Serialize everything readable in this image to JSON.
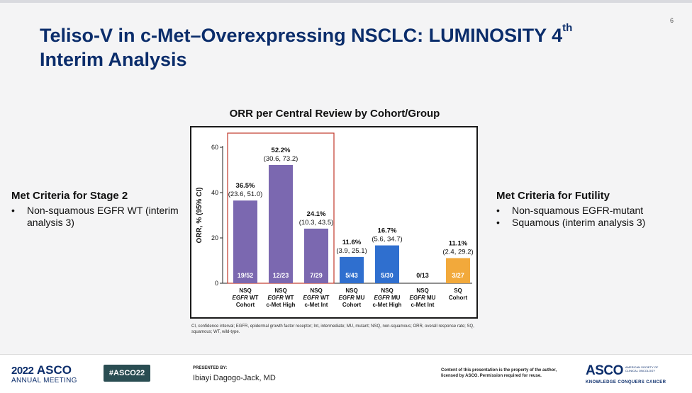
{
  "slide": {
    "page_number": "6",
    "title": "Teliso-V in c-Met–Overexpressing NSCLC: LUMINOSITY 4",
    "title_sup": "th",
    "title_line2": "Interim Analysis"
  },
  "left_panel": {
    "heading": "Met Criteria for Stage 2",
    "bullets": [
      "Non-squamous EGFR WT (interim analysis 3)"
    ]
  },
  "right_panel": {
    "heading": "Met Criteria for Futility",
    "bullets": [
      "Non-squamous EGFR-mutant",
      "Squamous (interim analysis 3)"
    ]
  },
  "chart_data": {
    "type": "bar",
    "title": "ORR per Central Review by Cohort/Group",
    "ylabel": "ORR, % (95% CI)",
    "ylim": [
      0,
      60
    ],
    "yticks": [
      0,
      20,
      40,
      60
    ],
    "categories": [
      [
        "NSQ",
        "EGFR WT",
        "Cohort"
      ],
      [
        "NSQ",
        "EGFR WT",
        "c-Met High"
      ],
      [
        "NSQ",
        "EGFR WT",
        "c-Met Int"
      ],
      [
        "NSQ",
        "EGFR MU",
        "Cohort"
      ],
      [
        "NSQ",
        "EGFR MU",
        "c-Met High"
      ],
      [
        "NSQ",
        "EGFR MU",
        "c-Met Int"
      ],
      [
        "SQ",
        "",
        "Cohort"
      ]
    ],
    "values": [
      36.5,
      52.2,
      24.1,
      11.6,
      16.7,
      0,
      11.1
    ],
    "value_labels": [
      "36.5%",
      "52.2%",
      "24.1%",
      "11.6%",
      "16.7%",
      "",
      "11.1%"
    ],
    "ci_labels": [
      "(23.6, 51.0)",
      "(30.6, 73.2)",
      "(10.3, 43.5)",
      "(3.9, 25.1)",
      "(5.6, 34.7)",
      "",
      "(2.4, 29.2)"
    ],
    "counts": [
      "19/52",
      "12/23",
      "7/29",
      "5/43",
      "5/30",
      "0/13",
      "3/27"
    ],
    "colors": [
      "#7b68b0",
      "#7b68b0",
      "#7b68b0",
      "#2f6fcf",
      "#2f6fcf",
      "#2f6fcf",
      "#f2a93b"
    ],
    "highlight_box_color": "#c0392b",
    "highlight_group": [
      0,
      1,
      2
    ]
  },
  "footnote": "CI, confidence interval; EGFR, epidermal growth factor receptor; Int, intermediate; MU, mutant; NSQ, non-squamous; ORR, overall response rate; SQ, squamous; WT, wild-type.",
  "footer": {
    "meeting_year": "2022",
    "meeting_org": "ASCO",
    "meeting_name": "ANNUAL MEETING",
    "hashtag": "#ASCO22",
    "presented_by_label": "PRESENTED BY:",
    "presenter_name": "Ibiayi Dagogo-Jack, MD",
    "copyright": "Content of this presentation is the property of the author, licensed by ASCO. Permission required for reuse.",
    "org_logo_word": "ASCO",
    "org_logo_society": "AMERICAN SOCIETY OF CLINICAL ONCOLOGY",
    "org_tagline": "KNOWLEDGE CONQUERS CANCER"
  }
}
